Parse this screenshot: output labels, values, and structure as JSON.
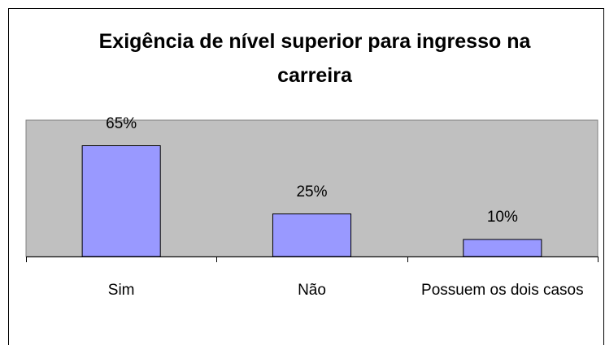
{
  "chart_data": {
    "type": "bar",
    "title": "Exigência de nível superior para ingresso na carreira",
    "categories": [
      "Sim",
      "Não",
      "Possuem os dois casos"
    ],
    "values": [
      65,
      25,
      10
    ],
    "value_labels": [
      "65%",
      "25%",
      "10%"
    ],
    "color": "#9999ff",
    "ylim": [
      0,
      80
    ]
  }
}
